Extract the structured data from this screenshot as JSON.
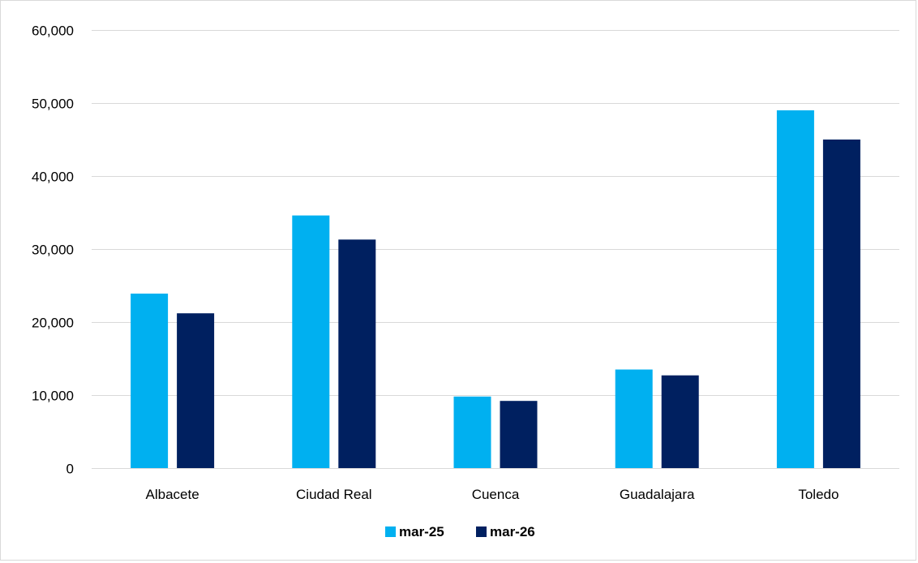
{
  "chart_data": {
    "type": "bar",
    "title": "",
    "xlabel": "",
    "ylabel": "",
    "categories": [
      "Albacete",
      "Ciudad Real",
      "Cuenca",
      "Guadalajara",
      "Toledo"
    ],
    "series": [
      {
        "name": "mar-25",
        "color": "#00b0f0",
        "values": [
          23900,
          34600,
          9800,
          13500,
          49000
        ]
      },
      {
        "name": "mar-26",
        "color": "#002060",
        "values": [
          21200,
          31300,
          9200,
          12700,
          45000
        ]
      }
    ],
    "ylim": [
      0,
      60000
    ],
    "yticks": [
      0,
      10000,
      20000,
      30000,
      40000,
      50000,
      60000
    ],
    "ytick_labels": [
      "0",
      "10,000",
      "20,000",
      "30,000",
      "40,000",
      "50,000",
      "60,000"
    ],
    "grid": true,
    "gridline_color": "#d9d9d9",
    "legend_position": "bottom"
  }
}
